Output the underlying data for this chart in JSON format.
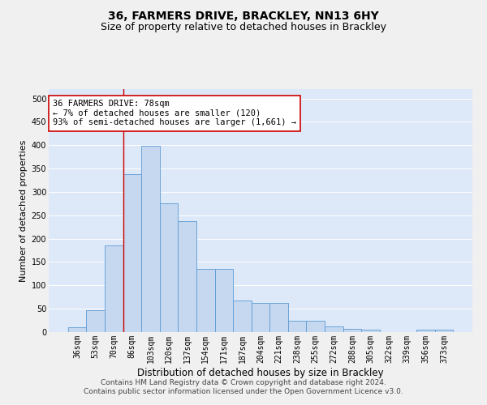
{
  "title": "36, FARMERS DRIVE, BRACKLEY, NN13 6HY",
  "subtitle": "Size of property relative to detached houses in Brackley",
  "xlabel": "Distribution of detached houses by size in Brackley",
  "ylabel": "Number of detached properties",
  "categories": [
    "36sqm",
    "53sqm",
    "70sqm",
    "86sqm",
    "103sqm",
    "120sqm",
    "137sqm",
    "154sqm",
    "171sqm",
    "187sqm",
    "204sqm",
    "221sqm",
    "238sqm",
    "255sqm",
    "272sqm",
    "288sqm",
    "305sqm",
    "322sqm",
    "339sqm",
    "356sqm",
    "373sqm"
  ],
  "values": [
    10,
    47,
    186,
    338,
    398,
    276,
    238,
    135,
    135,
    68,
    62,
    62,
    25,
    25,
    12,
    7,
    6,
    0,
    0,
    5,
    5
  ],
  "bar_color": "#c5d8f0",
  "bar_edge_color": "#5b9bd5",
  "bar_width": 1.0,
  "vline_x": 2.5,
  "vline_color": "#cc0000",
  "annotation_text": "36 FARMERS DRIVE: 78sqm\n← 7% of detached houses are smaller (120)\n93% of semi-detached houses are larger (1,661) →",
  "annotation_box_color": "#ffffff",
  "annotation_box_edge": "#cc0000",
  "ylim": [
    0,
    520
  ],
  "yticks": [
    0,
    50,
    100,
    150,
    200,
    250,
    300,
    350,
    400,
    450,
    500
  ],
  "bg_color": "#dde8f8",
  "grid_color": "#ffffff",
  "footer": "Contains HM Land Registry data © Crown copyright and database right 2024.\nContains public sector information licensed under the Open Government Licence v3.0.",
  "title_fontsize": 10,
  "subtitle_fontsize": 9,
  "ylabel_fontsize": 8,
  "xlabel_fontsize": 8.5,
  "tick_fontsize": 7,
  "footer_fontsize": 6.5,
  "annotation_fontsize": 7.5
}
